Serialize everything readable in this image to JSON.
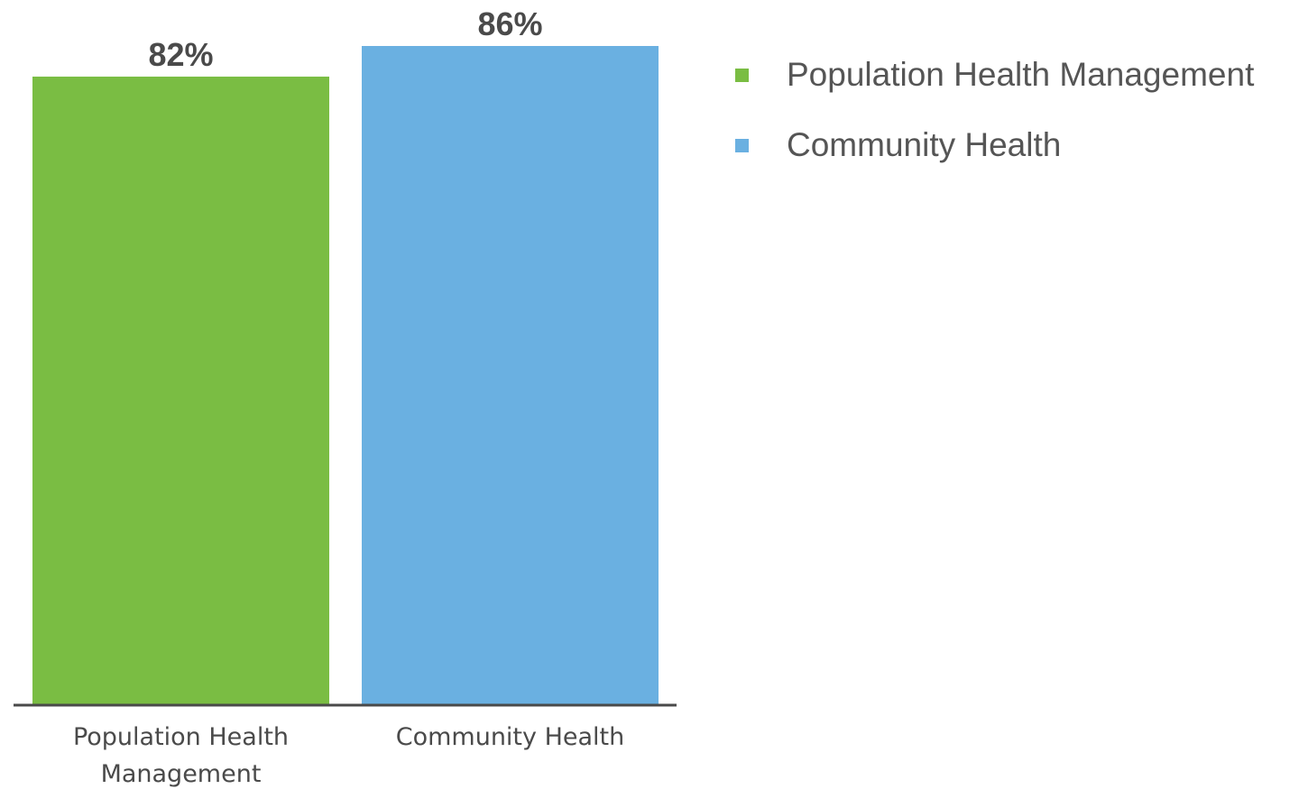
{
  "chart_data": {
    "type": "bar",
    "title": "",
    "xlabel": "",
    "ylabel": "",
    "ylim": [
      0,
      86
    ],
    "grid": false,
    "legend_position": "right",
    "categories": [
      "Population Health Management",
      "Community Health"
    ],
    "category_labels": [
      [
        "Population Health",
        "Management"
      ],
      [
        "Community Health"
      ]
    ],
    "values": [
      82,
      86
    ],
    "value_labels": [
      "82%",
      "86%"
    ],
    "colors": [
      "#7abd43",
      "#6ab0e1"
    ],
    "legend": [
      {
        "label": "Population Health Management",
        "color": "#7abd43"
      },
      {
        "label": "Community Health",
        "color": "#6ab0e1"
      }
    ],
    "axis_color": "#4a4a4a"
  }
}
